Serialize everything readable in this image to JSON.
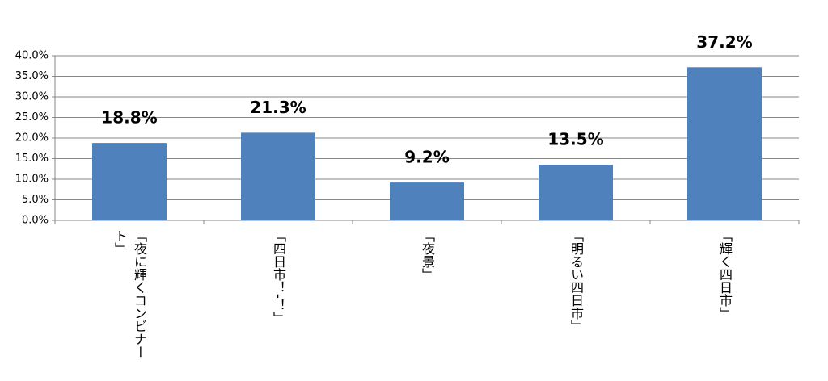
{
  "chart_data": {
    "type": "bar",
    "categories": [
      "「夜に輝くコンビナート」",
      "「四日市！-！」",
      "「夜景」",
      "「明るい四日市」",
      "「輝く四日市」"
    ],
    "values": [
      18.8,
      21.3,
      9.2,
      13.5,
      37.2
    ],
    "value_labels": [
      "18.8%",
      "21.3%",
      "9.2%",
      "13.5%",
      "37.2%"
    ],
    "color": "#4f81bd",
    "ylim": [
      0,
      40
    ],
    "yticks": [
      {
        "value": 0,
        "label": "0.0%"
      },
      {
        "value": 5,
        "label": "5.0%"
      },
      {
        "value": 10,
        "label": "10.0%"
      },
      {
        "value": 15,
        "label": "15.0%"
      },
      {
        "value": 20,
        "label": "20.0%"
      },
      {
        "value": 25,
        "label": "25.0%"
      },
      {
        "value": 30,
        "label": "30.0%"
      },
      {
        "value": 35,
        "label": "35.0%"
      },
      {
        "value": 40,
        "label": "40.0%"
      }
    ],
    "grid": true
  }
}
